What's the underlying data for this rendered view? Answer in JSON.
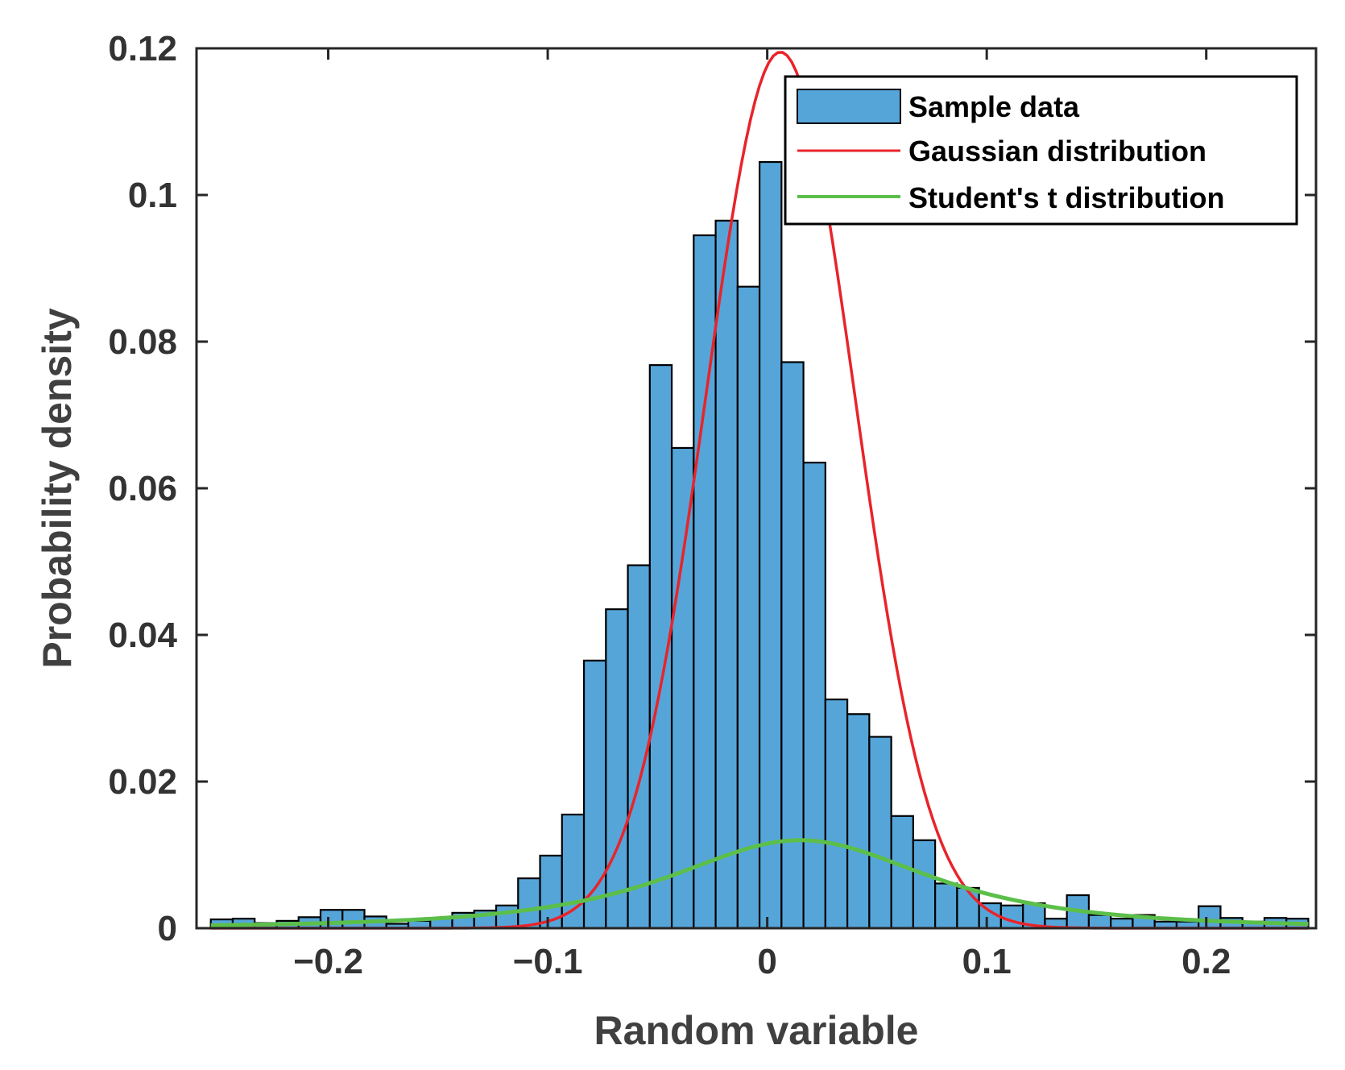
{
  "chart_data": {
    "type": "bar",
    "title": "",
    "xlabel": "Random variable",
    "ylabel": "Probability density",
    "xlim": [
      -0.26,
      0.25
    ],
    "ylim": [
      0,
      0.12
    ],
    "grid": false,
    "legend_position": "top-right",
    "x_ticks": [
      -0.2,
      -0.1,
      0,
      0.1,
      0.2
    ],
    "x_tick_labels": [
      "−0.2",
      "−0.1",
      "0",
      "0.1",
      "0.2"
    ],
    "y_ticks": [
      0,
      0.02,
      0.04,
      0.06,
      0.08,
      0.1,
      0.12
    ],
    "y_tick_labels": [
      "0",
      "0.02",
      "0.04",
      "0.06",
      "0.08",
      "0.1",
      "0.12"
    ],
    "bin_start": -0.2535,
    "bin_width": 0.01,
    "bars": [
      0.0012,
      0.0013,
      0.0007,
      0.001,
      0.0015,
      0.0025,
      0.0025,
      0.0016,
      0.0006,
      0.001,
      0.0014,
      0.0021,
      0.0024,
      0.0031,
      0.0068,
      0.0099,
      0.0155,
      0.0365,
      0.0435,
      0.0495,
      0.0768,
      0.0655,
      0.0945,
      0.0965,
      0.0875,
      0.1045,
      0.0772,
      0.0635,
      0.0312,
      0.0292,
      0.0261,
      0.0153,
      0.012,
      0.0061,
      0.0055,
      0.0034,
      0.0031,
      0.0034,
      0.0013,
      0.0045,
      0.0018,
      0.0013,
      0.0018,
      0.0009,
      0.0009,
      0.003,
      0.0014,
      0.0009,
      0.0014,
      0.0013
    ],
    "series": [
      {
        "name": "Gaussian distribution",
        "color": "#e8242a",
        "mu": 0.006,
        "sigma": 0.034,
        "peak": 0.1195
      },
      {
        "name": "Student's t distribution",
        "color": "#5cbf4a",
        "center": 0.015,
        "peak": 0.012,
        "scale": 0.0645,
        "dof": 2.05
      }
    ],
    "legend": [
      "Sample data",
      "Gaussian distribution",
      "Student's t distribution"
    ],
    "bar_color": "#56a5d9"
  }
}
